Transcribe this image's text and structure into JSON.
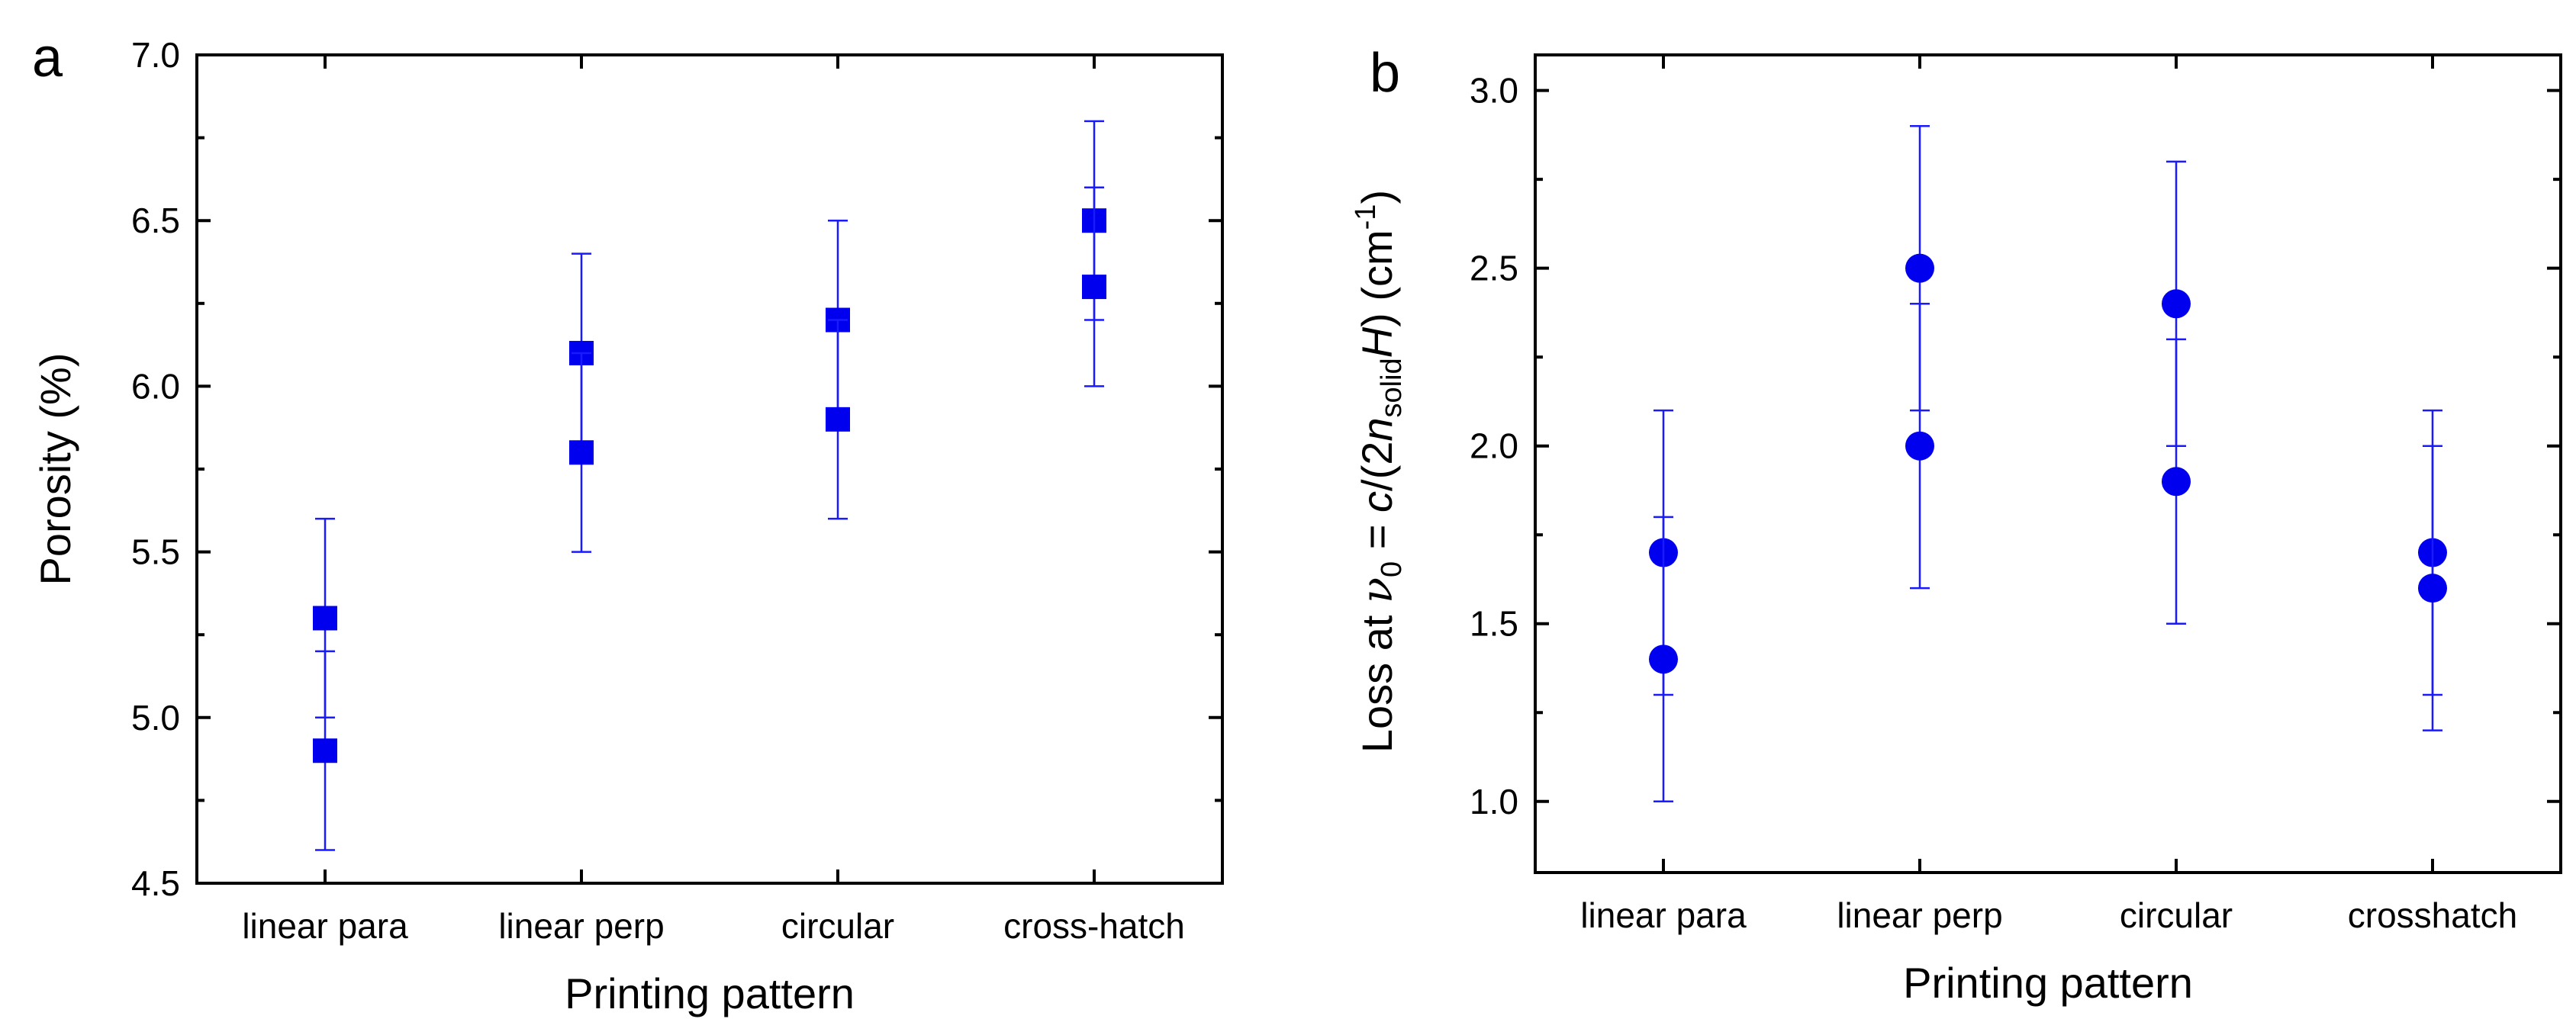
{
  "chart_data": [
    {
      "type": "scatter",
      "panel_label": "a",
      "marker": "square",
      "color": "#0000ee",
      "categories": [
        "linear para",
        "linear perp",
        "circular",
        "cross-hatch"
      ],
      "xlabel": "Printing pattern",
      "ylabel": "Porosity (%)",
      "ylim": [
        4.5,
        7.0
      ],
      "yticks": [
        "4.5",
        "5.0",
        "5.5",
        "6.0",
        "6.5",
        "7.0"
      ],
      "points": [
        {
          "category": "linear para",
          "y": 5.3,
          "low": 5.0,
          "high": 5.6
        },
        {
          "category": "linear para",
          "y": 4.9,
          "low": 4.6,
          "high": 5.2
        },
        {
          "category": "linear perp",
          "y": 6.1,
          "low": 5.8,
          "high": 6.4
        },
        {
          "category": "linear perp",
          "y": 5.8,
          "low": 5.5,
          "high": 6.1
        },
        {
          "category": "circular",
          "y": 6.2,
          "low": 5.9,
          "high": 6.5
        },
        {
          "category": "circular",
          "y": 5.9,
          "low": 5.6,
          "high": 6.2
        },
        {
          "category": "cross-hatch",
          "y": 6.5,
          "low": 6.2,
          "high": 6.8
        },
        {
          "category": "cross-hatch",
          "y": 6.3,
          "low": 6.0,
          "high": 6.6
        }
      ]
    },
    {
      "type": "scatter",
      "panel_label": "b",
      "marker": "circle",
      "color": "#0000ee",
      "categories": [
        "linear para",
        "linear perp",
        "circular",
        "crosshatch"
      ],
      "xlabel": "Printing pattern",
      "ylabel_parts": {
        "prefix": "Loss at ",
        "nu": "ν",
        "nu_sub": "0",
        "eq": " = ",
        "c": "c",
        "mid1": "/(2",
        "n": "n",
        "n_sub": "solid",
        "H": "H",
        "close": ") (cm",
        "exp": "-1",
        "end": ")"
      },
      "ylim": [
        0.8,
        3.1
      ],
      "yticks": [
        "1.0",
        "1.5",
        "2.0",
        "2.5",
        "3.0"
      ],
      "points": [
        {
          "category": "linear para",
          "y": 1.7,
          "low": 1.3,
          "high": 2.1
        },
        {
          "category": "linear para",
          "y": 1.4,
          "low": 1.0,
          "high": 1.8
        },
        {
          "category": "linear perp",
          "y": 2.5,
          "low": 2.1,
          "high": 2.9
        },
        {
          "category": "linear perp",
          "y": 2.0,
          "low": 1.6,
          "high": 2.4
        },
        {
          "category": "circular",
          "y": 2.4,
          "low": 2.0,
          "high": 2.8
        },
        {
          "category": "circular",
          "y": 1.9,
          "low": 1.5,
          "high": 2.3
        },
        {
          "category": "crosshatch",
          "y": 1.7,
          "low": 1.3,
          "high": 2.1
        },
        {
          "category": "crosshatch",
          "y": 1.6,
          "low": 1.2,
          "high": 2.0
        }
      ]
    }
  ]
}
